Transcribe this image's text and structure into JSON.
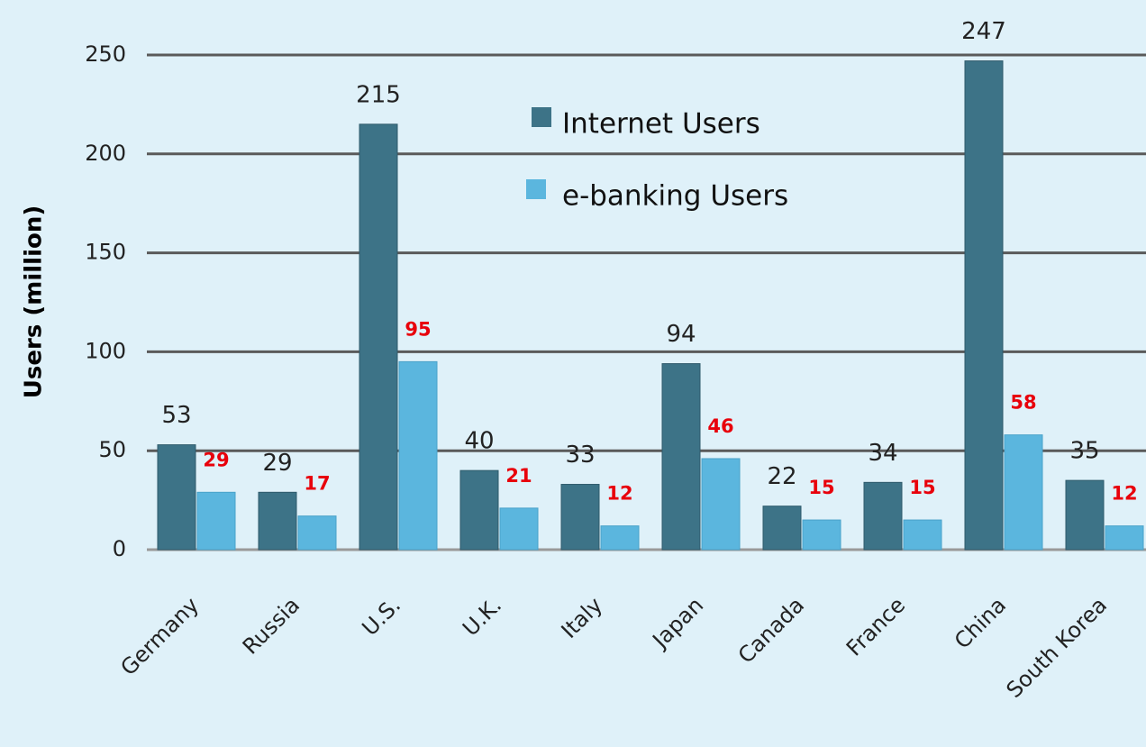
{
  "chart_data": {
    "type": "bar",
    "y_label": "Users (million)",
    "categories": [
      "Germany",
      "Russia",
      "U.S.",
      "U.K.",
      "Italy",
      "Japan",
      "Canada",
      "France",
      "China",
      "South Korea"
    ],
    "series": [
      {
        "name": "Internet Users",
        "color": "#3d7387",
        "values": [
          53,
          29,
          215,
          40,
          33,
          94,
          22,
          34,
          247,
          35
        ]
      },
      {
        "name": "e-banking Users",
        "color": "#5bb6de",
        "values": [
          29,
          17,
          95,
          21,
          12,
          46,
          15,
          15,
          58,
          12
        ]
      }
    ],
    "ylim": [
      0,
      250
    ],
    "yticks": [
      0,
      50,
      100,
      150,
      200,
      250
    ],
    "grid": true
  }
}
